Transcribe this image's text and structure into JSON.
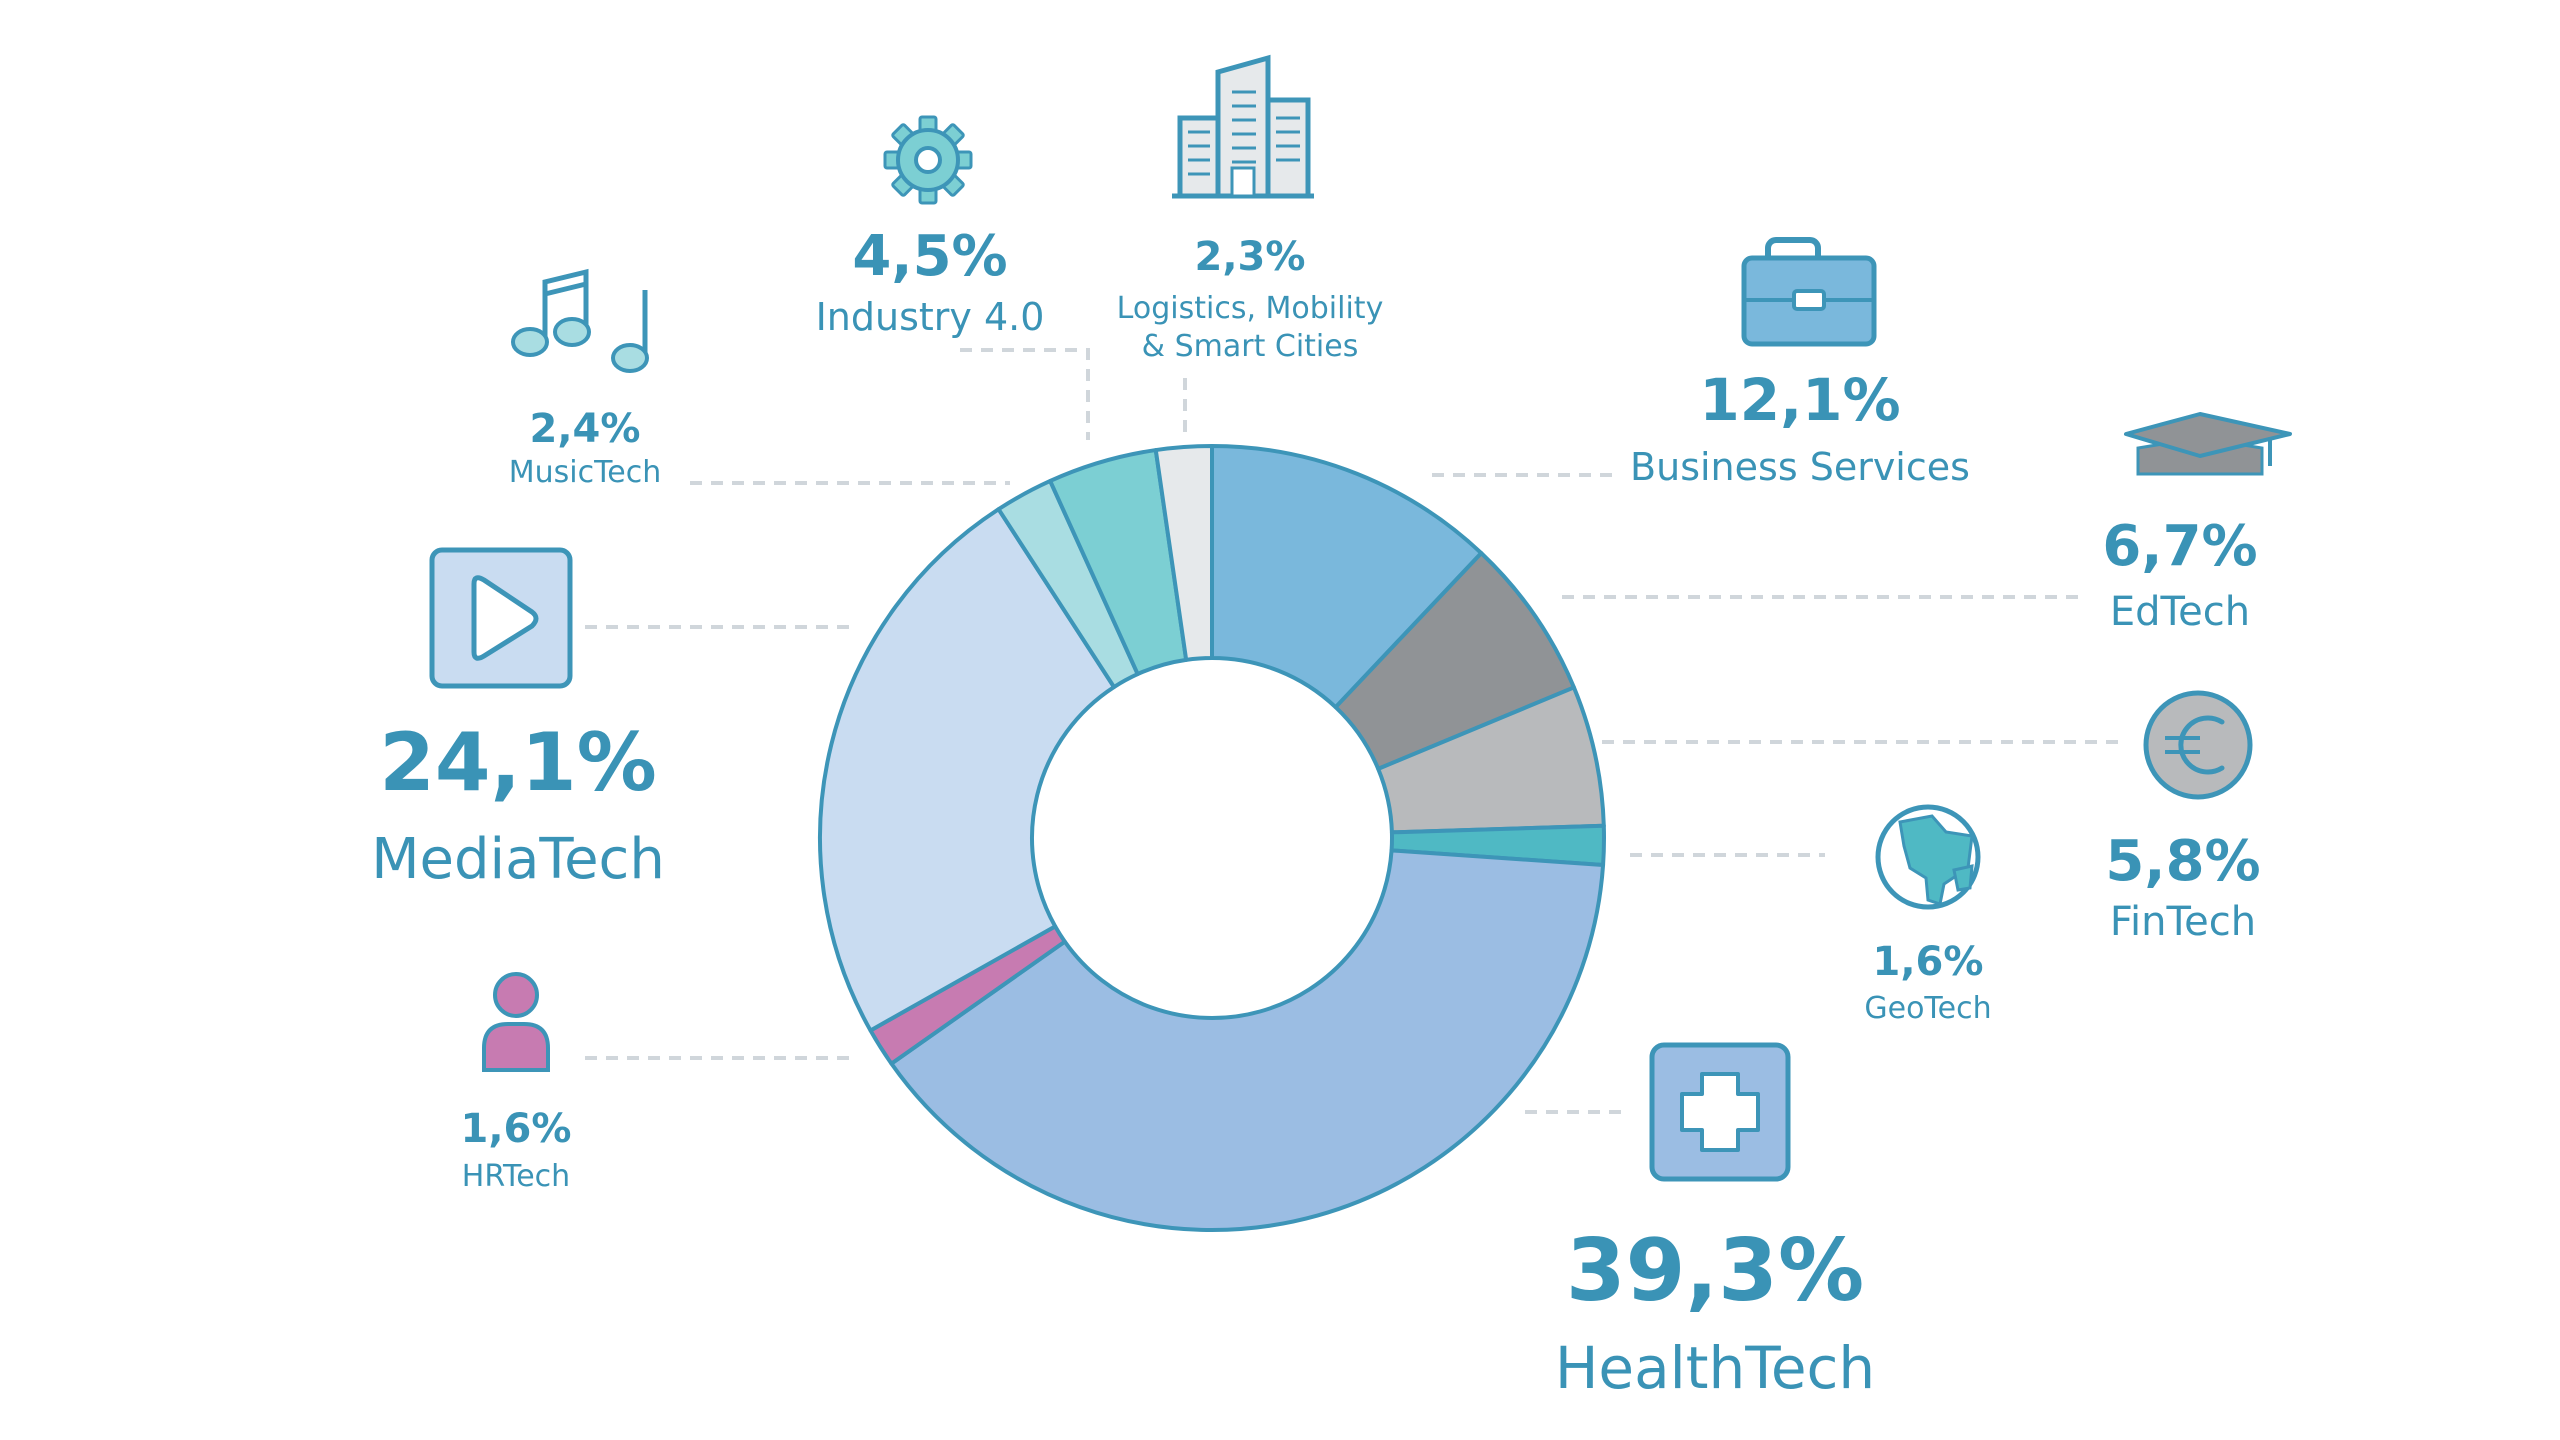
{
  "chart_data": {
    "type": "pie",
    "variant": "donut",
    "start_angle_deg": 0,
    "direction": "clockwise",
    "legend": "none",
    "colors": {
      "outline": "#3d95b8",
      "label": "#3a93b6",
      "leader": "#d0d6db"
    },
    "slices": [
      {
        "id": "business",
        "label": "Business Services",
        "value": 12.1,
        "value_label": "12,1%",
        "color": "#7ab8dc",
        "icon": "briefcase-icon"
      },
      {
        "id": "edtech",
        "label": "EdTech",
        "value": 6.7,
        "value_label": "6,7%",
        "color": "#909396",
        "icon": "graduation-cap-icon"
      },
      {
        "id": "fintech",
        "label": "FinTech",
        "value": 5.8,
        "value_label": "5,8%",
        "color": "#b8babc",
        "icon": "euro-coin-icon"
      },
      {
        "id": "geotech",
        "label": "GeoTech",
        "value": 1.6,
        "value_label": "1,6%",
        "color": "#4fb9c4",
        "icon": "globe-icon"
      },
      {
        "id": "healthtech",
        "label": "HealthTech",
        "value": 39.3,
        "value_label": "39,3%",
        "color": "#9bbde3",
        "icon": "medical-cross-icon"
      },
      {
        "id": "hrtech",
        "label": "HRTech",
        "value": 1.6,
        "value_label": "1,6%",
        "color": "#c77bb1",
        "icon": "person-icon"
      },
      {
        "id": "mediatech",
        "label": "MediaTech",
        "value": 24.1,
        "value_label": "24,1%",
        "color": "#c9dcf1",
        "icon": "play-button-icon"
      },
      {
        "id": "musictech",
        "label": "MusicTech",
        "value": 2.4,
        "value_label": "2,4%",
        "color": "#a9dde2",
        "icon": "music-notes-icon"
      },
      {
        "id": "industry",
        "label": "Industry 4.0",
        "value": 4.5,
        "value_label": "4,5%",
        "color": "#7ccfd3",
        "icon": "gear-icon"
      },
      {
        "id": "logistics",
        "label": "Logistics, Mobility\n& Smart Cities",
        "value": 2.3,
        "value_label": "2,3%",
        "color": "#e6e9eb",
        "icon": "building-icon"
      }
    ]
  }
}
